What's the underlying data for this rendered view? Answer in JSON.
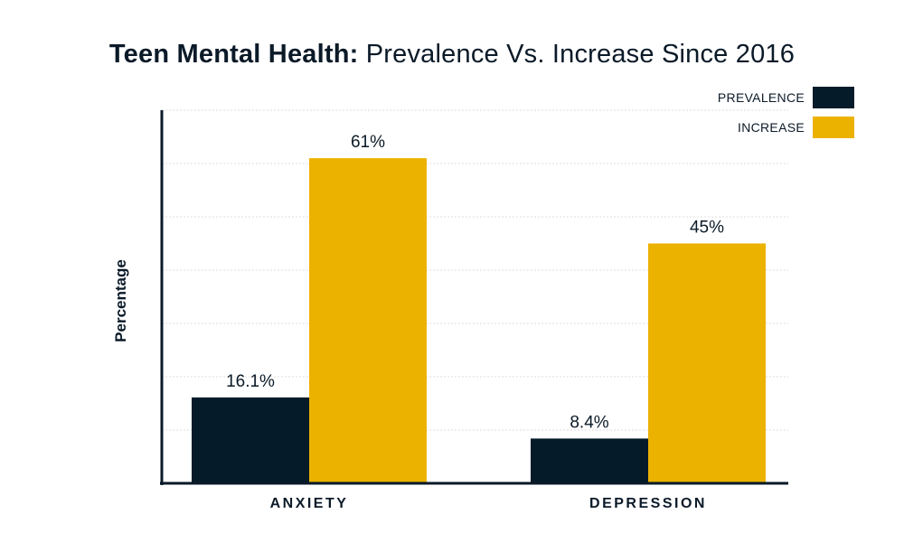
{
  "title": {
    "bold": "Teen Mental Health:",
    "light": " Prevalence Vs. Increase Since 2016"
  },
  "colors": {
    "prevalence": "#061b29",
    "increase": "#ecb200",
    "axis": "#0b1a28",
    "grid": "#dcdcdc",
    "text": "#0b1a28"
  },
  "chart_data": {
    "type": "bar",
    "title": "Teen Mental Health: Prevalence Vs. Increase Since 2016",
    "xlabel": "",
    "ylabel": "Percentage",
    "categories": [
      "ANXIETY",
      "DEPRESSION"
    ],
    "series": [
      {
        "name": "PREVALENCE",
        "values": [
          16.1,
          8.4
        ],
        "labels": [
          "16.1%",
          "8.4%"
        ]
      },
      {
        "name": "INCREASE",
        "values": [
          61,
          45
        ],
        "labels": [
          "61%",
          "45%"
        ]
      }
    ],
    "ylim": [
      0,
      70
    ],
    "grid": true,
    "legend_position": "top-right"
  }
}
